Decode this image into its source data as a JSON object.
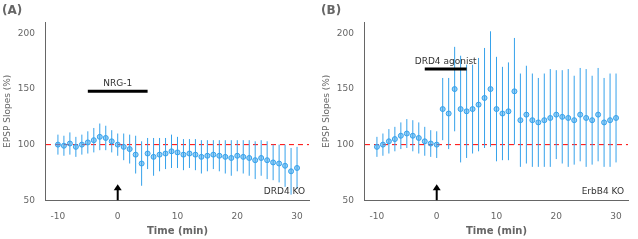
{
  "chart_data": [
    {
      "type": "scatter",
      "title": "(A)",
      "xlabel": "Time (min)",
      "ylabel": "EPSP Slopes (%)",
      "x": [
        -10,
        -9,
        -8,
        -7,
        -6,
        -5,
        -4,
        -3,
        -2,
        -1,
        0,
        1,
        2,
        3,
        4,
        5,
        6,
        7,
        8,
        9,
        10,
        11,
        12,
        13,
        14,
        15,
        16,
        17,
        18,
        19,
        20,
        21,
        22,
        23,
        24,
        25,
        26,
        27,
        28,
        29,
        30
      ],
      "values": [
        100,
        99,
        101,
        98,
        100,
        102,
        104,
        107,
        106,
        103,
        100,
        98,
        96,
        91,
        83,
        92,
        89,
        91,
        92,
        94,
        93,
        91,
        92,
        91,
        89,
        90,
        91,
        90,
        89,
        88,
        90,
        89,
        88,
        86,
        88,
        86,
        84,
        83,
        81,
        76,
        79
      ],
      "errors": [
        9,
        9,
        10,
        9,
        9,
        10,
        11,
        12,
        11,
        10,
        10,
        12,
        13,
        17,
        20,
        14,
        17,
        15,
        14,
        15,
        14,
        14,
        13,
        14,
        15,
        14,
        13,
        14,
        15,
        16,
        14,
        15,
        16,
        17,
        16,
        17,
        16,
        17,
        19,
        21,
        19
      ],
      "xlim": [
        -12,
        32
      ],
      "ylim": [
        50,
        210
      ],
      "xticks": [
        -10,
        0,
        10,
        20,
        30
      ],
      "yticks": [
        50,
        100,
        150,
        200
      ],
      "grid": false,
      "marker": "circle",
      "annotations": [
        {
          "type": "hline",
          "y": 100,
          "color": "red",
          "line_style": "dashed"
        },
        {
          "type": "arrow",
          "x": 0
        },
        {
          "type": "bar",
          "text": "NRG-1",
          "x": [
            -5,
            5
          ],
          "y": 148,
          "text_x": 0
        },
        {
          "type": "text",
          "text": "DRD4 KO",
          "position": "lower right"
        }
      ]
    },
    {
      "type": "scatter",
      "title": "(B)",
      "xlabel": "Time (min)",
      "ylabel": "EPSP Slopes (%)",
      "x": [
        -10,
        -9,
        -8,
        -7,
        -6,
        -5,
        -4,
        -3,
        -2,
        -1,
        0,
        1,
        2,
        3,
        4,
        5,
        6,
        7,
        8,
        9,
        10,
        11,
        12,
        13,
        14,
        15,
        16,
        17,
        18,
        19,
        20,
        21,
        22,
        23,
        24,
        25,
        26,
        27,
        28,
        29,
        30
      ],
      "values": [
        98,
        100,
        103,
        105,
        108,
        110,
        108,
        106,
        103,
        101,
        100,
        132,
        128,
        150,
        132,
        130,
        132,
        136,
        142,
        150,
        132,
        128,
        130,
        148,
        122,
        127,
        122,
        120,
        122,
        124,
        127,
        125,
        124,
        122,
        127,
        124,
        122,
        127,
        120,
        122,
        124
      ],
      "errors": [
        9,
        10,
        11,
        11,
        12,
        13,
        14,
        14,
        13,
        12,
        12,
        28,
        32,
        38,
        48,
        42,
        40,
        42,
        45,
        52,
        47,
        42,
        44,
        48,
        42,
        44,
        42,
        40,
        42,
        44,
        40,
        42,
        44,
        40,
        42,
        44,
        40,
        42,
        40,
        42,
        40
      ],
      "xlim": [
        -12,
        32
      ],
      "ylim": [
        50,
        210
      ],
      "xticks": [
        -10,
        0,
        10,
        20,
        30
      ],
      "yticks": [
        50,
        100,
        150,
        200
      ],
      "grid": false,
      "marker": "circle",
      "annotations": [
        {
          "type": "hline",
          "y": 100,
          "color": "red",
          "line_style": "dashed"
        },
        {
          "type": "arrow",
          "x": 0
        },
        {
          "type": "bar",
          "text": "DRD4 agonist",
          "x": [
            -2,
            5
          ],
          "y": 168,
          "text_x": 1.5
        },
        {
          "type": "text",
          "text": "ErbB4 KO",
          "position": "lower right"
        }
      ]
    }
  ]
}
